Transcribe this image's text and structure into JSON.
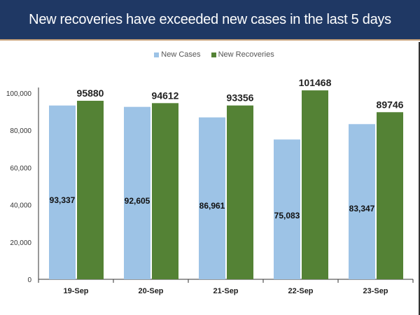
{
  "title": "New recoveries have exceeded new cases in the last 5 days",
  "colors": {
    "header": "#1f3864",
    "new_cases": "#9dc3e6",
    "new_recoveries": "#548235"
  },
  "chart_data": {
    "type": "bar",
    "title": "New recoveries have exceeded new cases in the last 5 days",
    "categories": [
      "19-Sep",
      "20-Sep",
      "21-Sep",
      "22-Sep",
      "23-Sep"
    ],
    "series": [
      {
        "name": "New Cases",
        "values": [
          93337,
          92605,
          86961,
          75083,
          83347
        ],
        "labels": [
          "93,337",
          "92,605",
          "86,961",
          "75,083",
          "83,347"
        ]
      },
      {
        "name": "New Recoveries",
        "values": [
          95880,
          94612,
          93356,
          101468,
          89746
        ],
        "labels": [
          "95880",
          "94612",
          "93356",
          "101468",
          "89746"
        ]
      }
    ],
    "yticks": [
      "0",
      "20,000",
      "40,000",
      "60,000",
      "80,000",
      "100,000"
    ],
    "ylim": [
      0,
      100000
    ],
    "legend": "top-center",
    "grid": false
  }
}
